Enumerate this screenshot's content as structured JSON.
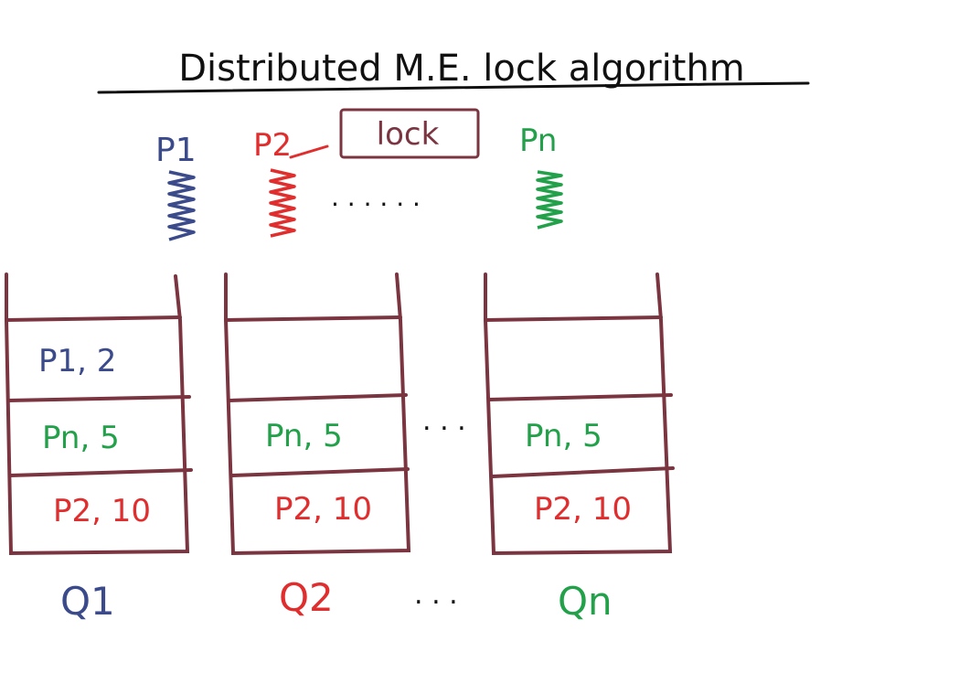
{
  "title": "Distributed M.E. lock algorithm",
  "lock_label": "lock",
  "colors": {
    "ink": "#111111",
    "box": "#7a3540",
    "p1": "#3b4a8a",
    "p2": "#e02d2d",
    "pn": "#22a14a"
  },
  "processes": [
    {
      "label": "P1",
      "color_key": "p1"
    },
    {
      "label": "P2",
      "color_key": "p2"
    },
    {
      "label": "Pn",
      "color_key": "pn"
    }
  ],
  "process_ellipsis": ". . . . . .",
  "queue_ellipsis": ". . .",
  "label_ellipsis": ". . .",
  "queues": [
    {
      "label": "Q1",
      "label_color_key": "p1",
      "entries": [
        {
          "text": "P1, 2",
          "color_key": "p1"
        },
        {
          "text": "Pn, 5",
          "color_key": "pn"
        },
        {
          "text": "P2, 10",
          "color_key": "p2"
        }
      ]
    },
    {
      "label": "Q2",
      "label_color_key": "p2",
      "entries": [
        {
          "text": "",
          "color_key": "p1"
        },
        {
          "text": "Pn, 5",
          "color_key": "pn"
        },
        {
          "text": "P2, 10",
          "color_key": "p2"
        }
      ]
    },
    {
      "label": "Qn",
      "label_color_key": "pn",
      "entries": [
        {
          "text": "",
          "color_key": "p1"
        },
        {
          "text": "Pn, 5",
          "color_key": "pn"
        },
        {
          "text": "P2, 10",
          "color_key": "p2"
        }
      ]
    }
  ]
}
